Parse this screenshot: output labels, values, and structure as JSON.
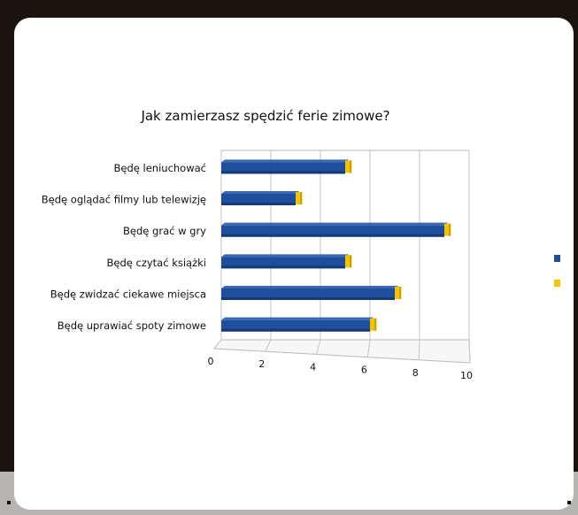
{
  "chart_data": {
    "type": "bar",
    "orientation": "horizontal",
    "title": "Jak zamierzasz spędzić ferie zimowe?",
    "categories": [
      "Będę leniuchować",
      "Będę oglądać filmy lub telewizję",
      "Będę grać w gry",
      "Będę czytać książki",
      "Będę zwidzać ciekawe miejsca",
      "Będę uprawiać spoty zimowe"
    ],
    "series": [
      {
        "values": [
          5,
          3,
          9,
          5,
          7,
          6
        ],
        "color": "#1f4e9c"
      },
      {
        "values": [
          0.15,
          0.15,
          0.15,
          0.15,
          0.15,
          0.15
        ],
        "color": "#f2c500"
      }
    ],
    "xlim": [
      0,
      10
    ],
    "xticks": [
      "0",
      "2",
      "4",
      "6",
      "8",
      "10"
    ],
    "grid": true,
    "legend_position": "right",
    "style": "3d"
  }
}
